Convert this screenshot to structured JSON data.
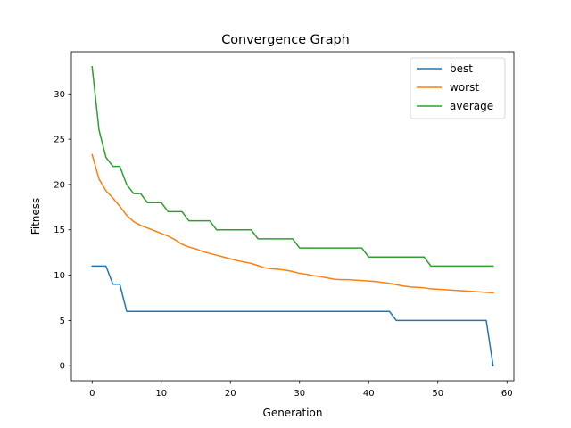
{
  "chart_data": {
    "type": "line",
    "title": "Convergence Graph",
    "xlabel": "Generation",
    "ylabel": "Fitness",
    "xlim": [
      -3,
      61
    ],
    "ylim": [
      -1.65,
      34.65
    ],
    "xticks": [
      0,
      10,
      20,
      30,
      40,
      50,
      60
    ],
    "yticks": [
      0,
      5,
      10,
      15,
      20,
      25,
      30
    ],
    "grid": false,
    "legend": "top-right",
    "x": [
      0,
      1,
      2,
      3,
      4,
      5,
      6,
      7,
      8,
      9,
      10,
      11,
      12,
      13,
      14,
      15,
      16,
      17,
      18,
      19,
      20,
      21,
      22,
      23,
      24,
      25,
      26,
      27,
      28,
      29,
      30,
      31,
      32,
      33,
      34,
      35,
      36,
      37,
      38,
      39,
      40,
      41,
      42,
      43,
      44,
      45,
      46,
      47,
      48,
      49,
      50,
      51,
      52,
      53,
      54,
      55,
      56,
      57,
      58
    ],
    "series": [
      {
        "name": "best",
        "color": "#1f77b4",
        "values": [
          11,
          11,
          11,
          9,
          9,
          6,
          6,
          6,
          6,
          6,
          6,
          6,
          6,
          6,
          6,
          6,
          6,
          6,
          6,
          6,
          6,
          6,
          6,
          6,
          6,
          6,
          6,
          6,
          6,
          6,
          6,
          6,
          6,
          6,
          6,
          6,
          6,
          6,
          6,
          6,
          6,
          6,
          6,
          6,
          5,
          5,
          5,
          5,
          5,
          5,
          5,
          5,
          5,
          5,
          5,
          5,
          5,
          5,
          0
        ]
      },
      {
        "name": "worst",
        "color": "#ff7f0e",
        "values": [
          23.3,
          20.6,
          19.3,
          18.5,
          17.6,
          16.6,
          15.9,
          15.5,
          15.2,
          14.9,
          14.6,
          14.3,
          13.9,
          13.4,
          13.1,
          12.9,
          12.6,
          12.4,
          12.2,
          12.0,
          11.8,
          11.6,
          11.45,
          11.3,
          11.05,
          10.8,
          10.7,
          10.65,
          10.55,
          10.4,
          10.2,
          10.1,
          9.95,
          9.85,
          9.7,
          9.55,
          9.5,
          9.5,
          9.45,
          9.4,
          9.35,
          9.3,
          9.2,
          9.1,
          8.95,
          8.8,
          8.7,
          8.65,
          8.6,
          8.5,
          8.45,
          8.4,
          8.35,
          8.3,
          8.25,
          8.2,
          8.15,
          8.1,
          8.05
        ]
      },
      {
        "name": "average",
        "color": "#2ca02c",
        "values": [
          33,
          26,
          23,
          22,
          22,
          20,
          19,
          19,
          18,
          18,
          18,
          17,
          17,
          17,
          16,
          16,
          16,
          16,
          15,
          15,
          15,
          15,
          15,
          15,
          14,
          14,
          14,
          14,
          14,
          14,
          13,
          13,
          13,
          13,
          13,
          13,
          13,
          13,
          13,
          13,
          12,
          12,
          12,
          12,
          12,
          12,
          12,
          12,
          12,
          11,
          11,
          11,
          11,
          11,
          11,
          11,
          11,
          11,
          11
        ]
      }
    ]
  }
}
